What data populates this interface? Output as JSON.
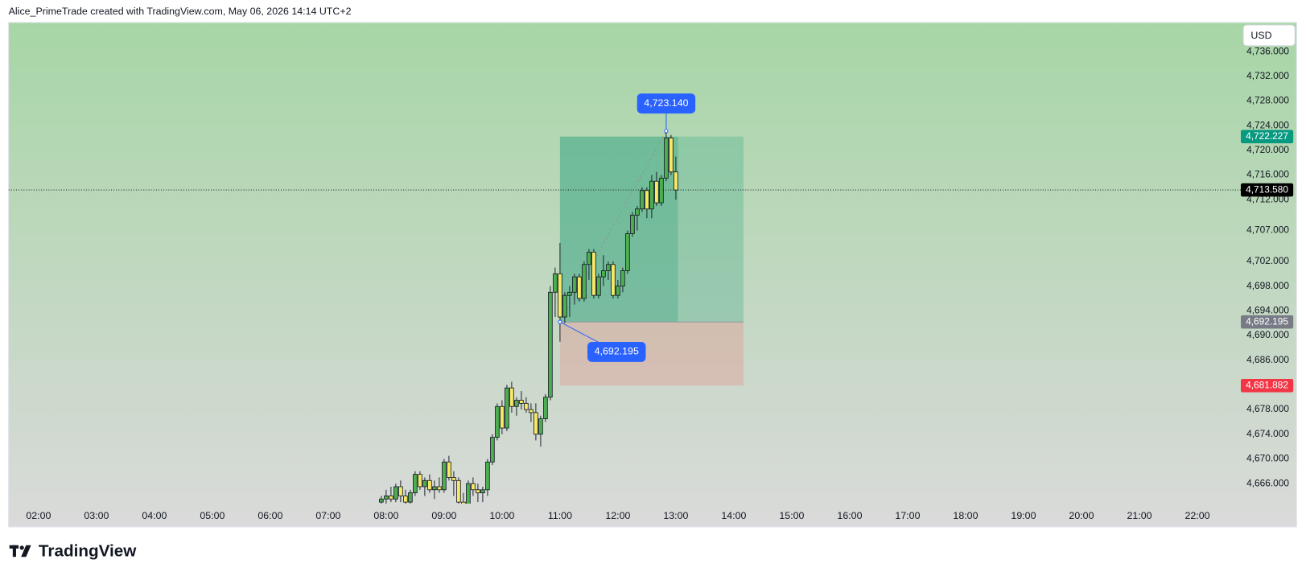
{
  "header": "Alice_PrimeTrade created with TradingView.com, May 06, 2026 14:14 UTC+2",
  "currency_button": "USD",
  "logo": "TradingView",
  "chart_data": {
    "type": "candlestick",
    "up_color": "#4caf50",
    "down_color": "#f7e968",
    "grid": false,
    "xlim": [
      "01:29",
      "22:45"
    ],
    "xticks": [
      "02:00",
      "03:00",
      "04:00",
      "05:00",
      "06:00",
      "07:00",
      "08:00",
      "09:00",
      "10:00",
      "11:00",
      "12:00",
      "13:00",
      "14:00",
      "15:00",
      "16:00",
      "17:00",
      "18:00",
      "19:00",
      "20:00",
      "21:00",
      "22:00"
    ],
    "ylim": [
      4662.76,
      4740.72
    ],
    "yticks": [
      {
        "value": 4736,
        "label": "4,736.000"
      },
      {
        "value": 4732,
        "label": "4,732.000"
      },
      {
        "value": 4728,
        "label": "4,728.000"
      },
      {
        "value": 4724,
        "label": "4,724.000"
      },
      {
        "value": 4720,
        "label": "4,720.000"
      },
      {
        "value": 4716,
        "label": "4,716.000"
      },
      {
        "value": 4712,
        "label": "4,712.000"
      },
      {
        "value": 4707,
        "label": "4,707.000"
      },
      {
        "value": 4702,
        "label": "4,702.000"
      },
      {
        "value": 4698,
        "label": "4,698.000"
      },
      {
        "value": 4694,
        "label": "4,694.000"
      },
      {
        "value": 4690,
        "label": "4,690.000"
      },
      {
        "value": 4686,
        "label": "4,686.000"
      },
      {
        "value": 4678,
        "label": "4,678.000"
      },
      {
        "value": 4674,
        "label": "4,674.000"
      },
      {
        "value": 4670,
        "label": "4,670.000"
      },
      {
        "value": 4666,
        "label": "4,666.000"
      }
    ],
    "x": [
      "07:55",
      "08:00",
      "08:05",
      "08:10",
      "08:15",
      "08:20",
      "08:25",
      "08:30",
      "08:35",
      "08:40",
      "08:45",
      "08:50",
      "08:55",
      "09:00",
      "09:05",
      "09:10",
      "09:15",
      "09:20",
      "09:25",
      "09:30",
      "09:35",
      "09:40",
      "09:45",
      "09:50",
      "09:55",
      "10:00",
      "10:05",
      "10:10",
      "10:15",
      "10:20",
      "10:25",
      "10:30",
      "10:35",
      "10:40",
      "10:45",
      "10:50",
      "10:55",
      "11:00",
      "11:05",
      "11:10",
      "11:15",
      "11:20",
      "11:25",
      "11:30",
      "11:35",
      "11:40",
      "11:45",
      "11:50",
      "11:55",
      "12:00",
      "12:05",
      "12:10",
      "12:15",
      "12:20",
      "12:25",
      "12:30",
      "12:35",
      "12:40",
      "12:45",
      "12:50",
      "12:55",
      "13:00"
    ],
    "open": [
      4663,
      4663.5,
      4664,
      4663.5,
      4665.5,
      4664,
      4663,
      4664.5,
      4667.5,
      4665.5,
      4666.5,
      4665,
      4665.5,
      4665,
      4669.5,
      4667,
      4666.5,
      4663,
      4662.5,
      4666,
      4665,
      4664.5,
      4665,
      4669.5,
      4673.5,
      4678.5,
      4675,
      4681.5,
      4678.5,
      4679.5,
      4679,
      4678,
      4677.5,
      4674,
      4676.5,
      4680,
      4697,
      4700,
      4693,
      4696.5,
      4697,
      4699.5,
      4696,
      4701.5,
      4703.5,
      4696.5,
      4699.5,
      4700.5,
      4701.5,
      4696.5,
      4698,
      4700.5,
      4706.5,
      4709.5,
      4710.5,
      4713.5,
      4710.5,
      4715,
      4711.5,
      4715.5,
      4722,
      4716.5
    ],
    "high": [
      4664,
      4665,
      4665.5,
      4666,
      4666.5,
      4665,
      4665,
      4668,
      4668,
      4667,
      4667.5,
      4666.5,
      4667,
      4670,
      4670.5,
      4668,
      4667,
      4664.5,
      4666.5,
      4667,
      4666,
      4665.5,
      4670,
      4674,
      4679,
      4679.5,
      4682,
      4682.5,
      4680,
      4681,
      4680,
      4679,
      4679,
      4677,
      4680.5,
      4698,
      4701,
      4705,
      4697,
      4698,
      4700,
      4700,
      4702,
      4704,
      4704,
      4700,
      4703,
      4702,
      4702,
      4699,
      4701,
      4707,
      4710,
      4711,
      4714,
      4714,
      4716,
      4716.5,
      4716,
      4723.14,
      4722.5,
      4719
    ],
    "low": [
      4662,
      4662.5,
      4663,
      4663,
      4663,
      4662,
      4662.5,
      4664,
      4665,
      4664,
      4664.5,
      4663.5,
      4664.5,
      4664.5,
      4666.5,
      4664,
      4662,
      4661,
      4662,
      4664,
      4663,
      4663,
      4664,
      4669,
      4673,
      4674,
      4674.5,
      4677.5,
      4677,
      4678,
      4677.5,
      4676,
      4673,
      4672,
      4676,
      4679.5,
      4693,
      4689,
      4692,
      4693,
      4695,
      4695.5,
      4695.5,
      4699,
      4696,
      4696,
      4698,
      4699,
      4696,
      4696,
      4697,
      4700,
      4706,
      4707,
      4710,
      4709,
      4709,
      4711,
      4711,
      4715,
      4716,
      4712
    ],
    "close": [
      4663.5,
      4664,
      4663.5,
      4665.5,
      4664,
      4663,
      4664.5,
      4667.5,
      4665.5,
      4666.5,
      4665,
      4665.5,
      4665,
      4669.5,
      4667,
      4666.5,
      4663,
      4662.5,
      4666,
      4665,
      4664.5,
      4665,
      4669.5,
      4673.5,
      4678.5,
      4675,
      4681.5,
      4678.5,
      4679.5,
      4679,
      4678,
      4677.5,
      4674,
      4676.5,
      4680,
      4697,
      4700,
      4693,
      4696.5,
      4697,
      4699.5,
      4696,
      4701.5,
      4703.5,
      4696.5,
      4699.5,
      4700.5,
      4701.5,
      4696.5,
      4698,
      4700.5,
      4706.5,
      4709.5,
      4710.5,
      4713.5,
      4710.5,
      4715,
      4711.5,
      4715.5,
      4722,
      4716.5,
      4713.58
    ],
    "last": {
      "value": 4713.58,
      "label": "4,713.580"
    },
    "position": {
      "start": "11:00",
      "end": "14:10",
      "target": {
        "value": 4722.227,
        "label": "4,722.227"
      },
      "entry": {
        "value": 4692.195,
        "label": "4,692.195"
      },
      "stop": {
        "value": 4681.882,
        "label": "4,681.882"
      }
    },
    "annotations": [
      {
        "time": "12:50",
        "value": 4723.14,
        "label": "4,723.140"
      },
      {
        "time": "11:00",
        "value": 4692.195,
        "label": "4,692.195"
      }
    ]
  }
}
